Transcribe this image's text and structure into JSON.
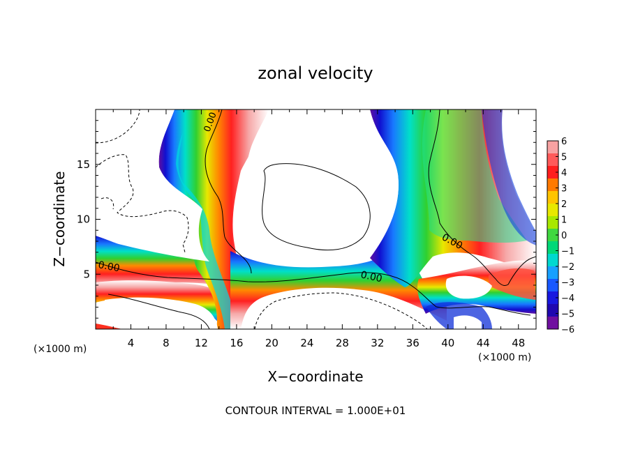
{
  "chart_data": {
    "type": "heatmap",
    "title": "zonal velocity",
    "xlabel": "X−coordinate",
    "ylabel": "Z−coordinate",
    "x_unit": "(×1000 m)",
    "x_unit_right": "(×1000 m)",
    "xlim": [
      0,
      50
    ],
    "ylim": [
      0,
      20
    ],
    "x_ticks": [
      "4",
      "8",
      "12",
      "16",
      "20",
      "24",
      "28",
      "32",
      "36",
      "40",
      "44",
      "48"
    ],
    "y_ticks": [
      "5",
      "10",
      "15"
    ],
    "colorbar": {
      "range": [
        -6,
        6
      ],
      "labels": [
        "6",
        "5",
        "4",
        "3",
        "2",
        "1",
        "0",
        "−1",
        "−2",
        "−3",
        "−4",
        "−5",
        "−6"
      ]
    },
    "contour_labels": [
      "0.00",
      "0.00",
      "0.00",
      "0.00"
    ],
    "footer": "CONTOUR INTERVAL = 1.000E+01"
  }
}
